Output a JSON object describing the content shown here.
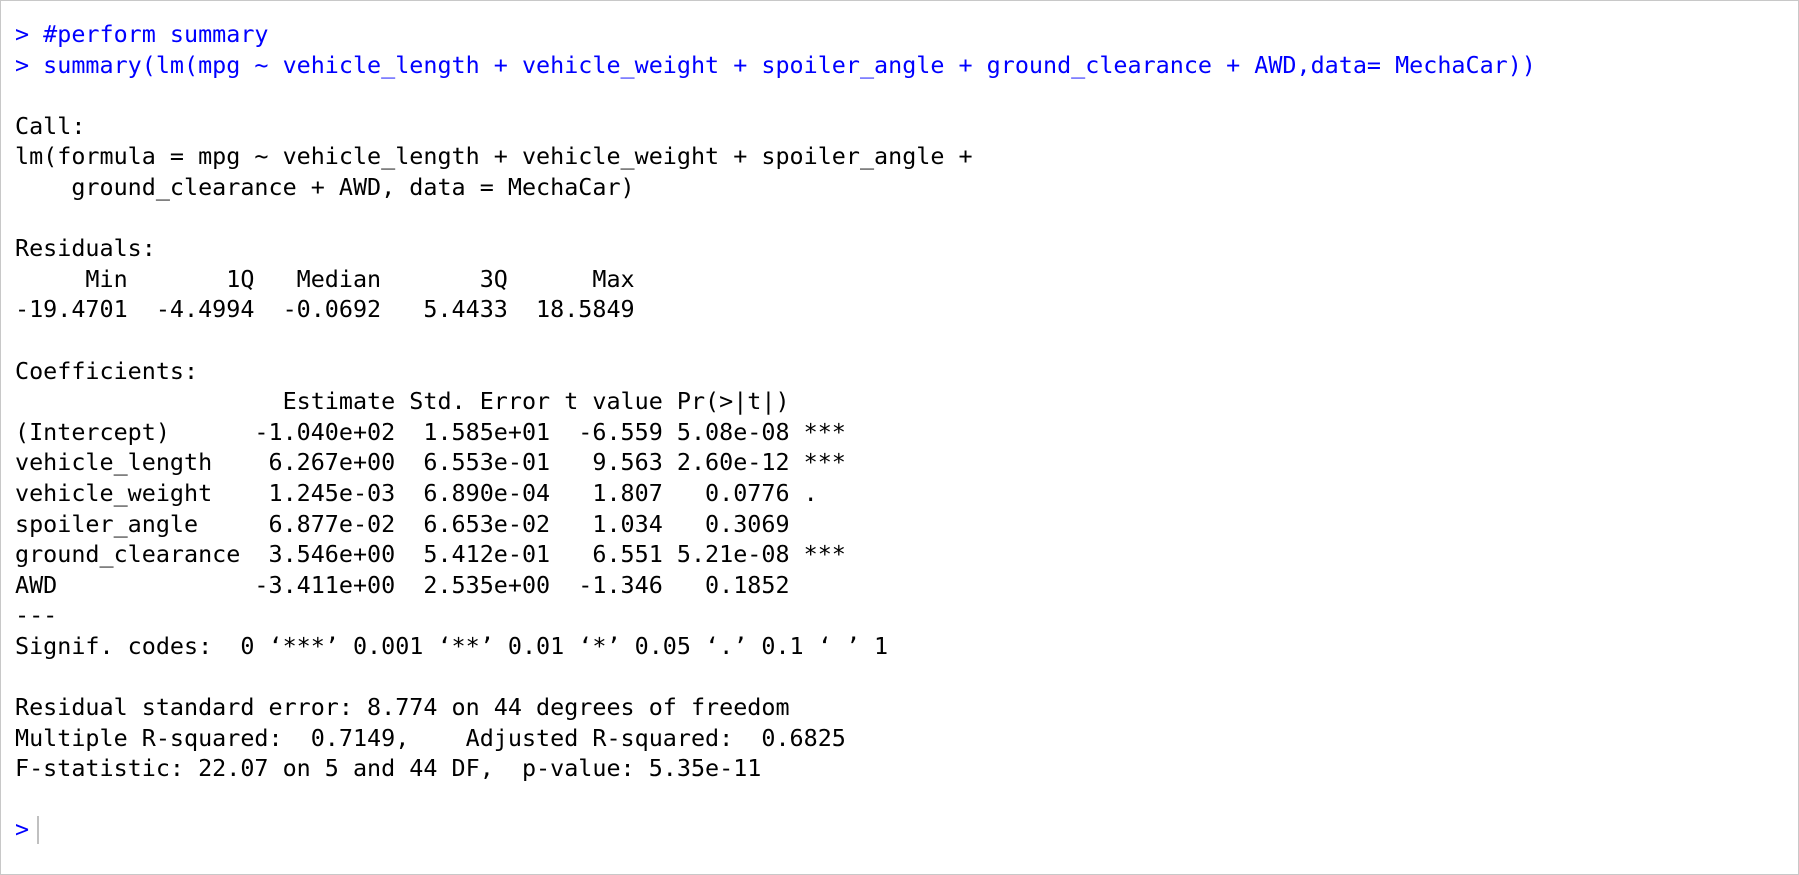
{
  "console": {
    "commands": {
      "comment": "> #perform summary",
      "call": "> summary(lm(mpg ~ vehicle_length + vehicle_weight + spoiler_angle + ground_clearance + AWD,data= MechaCar))"
    },
    "output": {
      "call_header": "Call:",
      "call_line1": "lm(formula = mpg ~ vehicle_length + vehicle_weight + spoiler_angle + ",
      "call_line2": "    ground_clearance + AWD, data = MechaCar)",
      "residuals_header": "Residuals:",
      "residuals_labels": "     Min       1Q   Median       3Q      Max ",
      "residuals_values": "-19.4701  -4.4994  -0.0692   5.4433  18.5849 ",
      "coefficients_header": "Coefficients:",
      "coef_columns": "                   Estimate Std. Error t value Pr(>|t|)    ",
      "coef_rows": [
        "(Intercept)      -1.040e+02  1.585e+01  -6.559 5.08e-08 ***",
        "vehicle_length    6.267e+00  6.553e-01   9.563 2.60e-12 ***",
        "vehicle_weight    1.245e-03  6.890e-04   1.807   0.0776 .  ",
        "spoiler_angle     6.877e-02  6.653e-02   1.034   0.3069    ",
        "ground_clearance  3.546e+00  5.412e-01   6.551 5.21e-08 ***",
        "AWD              -3.411e+00  2.535e+00  -1.346   0.1852    "
      ],
      "separator": "---",
      "signif_codes": "Signif. codes:  0 ‘***’ 0.001 ‘**’ 0.01 ‘*’ 0.05 ‘.’ 0.1 ‘ ’ 1",
      "rse": "Residual standard error: 8.774 on 44 degrees of freedom",
      "r_squared": "Multiple R-squared:  0.7149,\tAdjusted R-squared:  0.6825 ",
      "f_statistic": "F-statistic: 22.07 on 5 and 44 DF,  p-value: 5.35e-11"
    },
    "prompt": ">"
  },
  "colors": {
    "input_text": "#0000ff",
    "output_text": "#000000",
    "background": "#ffffff",
    "border": "#c8c8c8"
  }
}
